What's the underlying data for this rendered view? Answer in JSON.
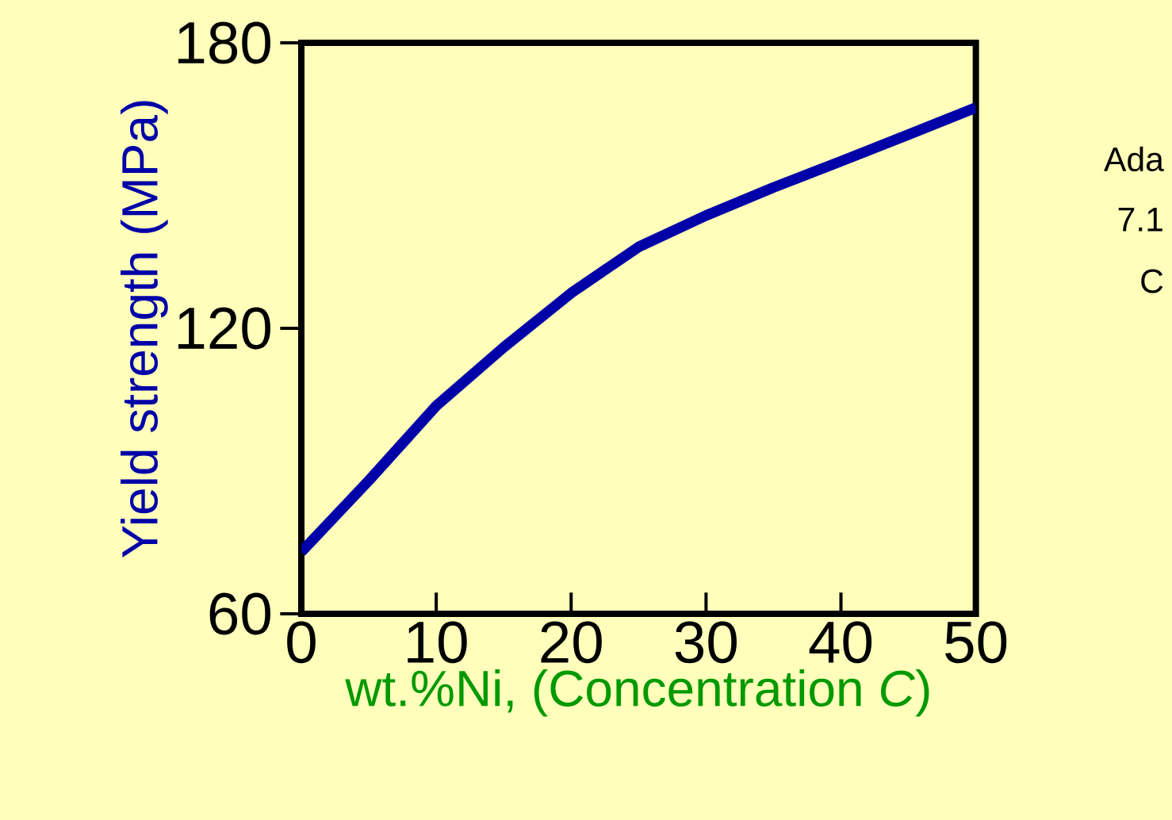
{
  "chart_data": {
    "type": "line",
    "xlabel": "wt.%Ni, (Concentration *C*)",
    "ylabel": "Yield strength (MPa)",
    "annotations": [
      "Ada",
      "7.1",
      "C"
    ],
    "x": [
      0,
      5,
      10,
      15,
      20,
      25,
      30,
      35,
      40,
      45,
      50
    ],
    "series": [
      {
        "color": "#0000a8",
        "values": [
          73,
          88,
          103.7,
          116,
          127.4,
          137.1,
          143.7,
          149.6,
          155.1,
          160.7,
          166.4
        ]
      }
    ],
    "xlim": [
      0,
      50
    ],
    "ylim": [
      60,
      180
    ],
    "xticks": [
      0,
      10,
      20,
      30,
      40,
      50
    ],
    "yticks": [
      60,
      120,
      180
    ],
    "marker": "none",
    "line_style": "solid"
  }
}
